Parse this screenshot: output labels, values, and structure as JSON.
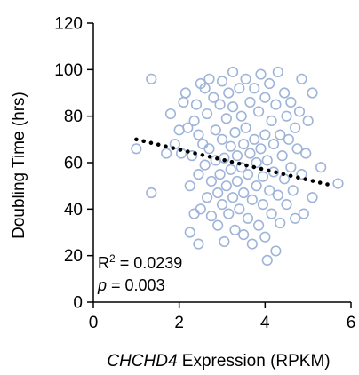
{
  "chart_data": {
    "type": "scatter",
    "title": "",
    "xlabel_gene": "CHCHD4",
    "xlabel_rest": " Expression (RPKM)",
    "ylabel": "Doubling Time (hrs)",
    "xlim": [
      0,
      6
    ],
    "ylim": [
      0,
      120
    ],
    "xticks": [
      0,
      2,
      4,
      6
    ],
    "yticks": [
      0,
      20,
      40,
      60,
      80,
      100,
      120
    ],
    "grid": false,
    "marker_color": "#9fb4d9",
    "trend_color": "#000000",
    "trendline": {
      "x": [
        1.0,
        5.6
      ],
      "y": [
        70,
        50
      ]
    },
    "stats": {
      "r2_label": "R",
      "r2_sup": "2",
      "r2_value": " = 0.0239",
      "p_label": "p",
      "p_value": " = 0.003"
    },
    "points": [
      [
        1.0,
        66
      ],
      [
        1.35,
        96
      ],
      [
        1.35,
        47
      ],
      [
        1.7,
        64
      ],
      [
        1.8,
        81
      ],
      [
        1.9,
        68
      ],
      [
        2.0,
        74
      ],
      [
        2.05,
        64
      ],
      [
        2.1,
        86
      ],
      [
        2.15,
        90
      ],
      [
        2.2,
        75
      ],
      [
        2.25,
        50
      ],
      [
        2.25,
        30
      ],
      [
        2.3,
        63
      ],
      [
        2.35,
        78
      ],
      [
        2.35,
        38
      ],
      [
        2.4,
        85
      ],
      [
        2.45,
        72
      ],
      [
        2.45,
        55
      ],
      [
        2.45,
        25
      ],
      [
        2.5,
        40
      ],
      [
        2.5,
        94
      ],
      [
        2.55,
        68
      ],
      [
        2.6,
        59
      ],
      [
        2.6,
        92
      ],
      [
        2.65,
        81
      ],
      [
        2.65,
        45
      ],
      [
        2.7,
        66
      ],
      [
        2.7,
        96
      ],
      [
        2.75,
        52
      ],
      [
        2.75,
        37
      ],
      [
        2.8,
        88
      ],
      [
        2.85,
        74
      ],
      [
        2.85,
        61
      ],
      [
        2.9,
        47
      ],
      [
        2.9,
        33
      ],
      [
        2.95,
        85
      ],
      [
        2.95,
        55
      ],
      [
        3.0,
        95
      ],
      [
        3.0,
        70
      ],
      [
        3.0,
        42
      ],
      [
        3.05,
        62
      ],
      [
        3.05,
        26
      ],
      [
        3.1,
        79
      ],
      [
        3.1,
        50
      ],
      [
        3.15,
        90
      ],
      [
        3.15,
        38
      ],
      [
        3.2,
        67
      ],
      [
        3.2,
        57
      ],
      [
        3.25,
        99
      ],
      [
        3.25,
        84
      ],
      [
        3.25,
        45
      ],
      [
        3.3,
        73
      ],
      [
        3.3,
        31
      ],
      [
        3.35,
        63
      ],
      [
        3.35,
        52
      ],
      [
        3.4,
        92
      ],
      [
        3.4,
        40
      ],
      [
        3.45,
        80
      ],
      [
        3.45,
        58
      ],
      [
        3.5,
        68
      ],
      [
        3.5,
        47
      ],
      [
        3.5,
        29
      ],
      [
        3.55,
        96
      ],
      [
        3.55,
        75
      ],
      [
        3.6,
        55
      ],
      [
        3.6,
        36
      ],
      [
        3.65,
        86
      ],
      [
        3.65,
        64
      ],
      [
        3.7,
        44
      ],
      [
        3.7,
        25
      ],
      [
        3.75,
        92
      ],
      [
        3.75,
        70
      ],
      [
        3.8,
        60
      ],
      [
        3.8,
        50
      ],
      [
        3.85,
        82
      ],
      [
        3.85,
        33
      ],
      [
        3.9,
        98
      ],
      [
        3.9,
        66
      ],
      [
        3.95,
        42
      ],
      [
        3.95,
        54
      ],
      [
        4.0,
        88
      ],
      [
        4.0,
        72
      ],
      [
        4.0,
        28
      ],
      [
        4.05,
        61
      ],
      [
        4.05,
        18
      ],
      [
        4.1,
        94
      ],
      [
        4.1,
        48
      ],
      [
        4.15,
        78
      ],
      [
        4.15,
        38
      ],
      [
        4.2,
        68
      ],
      [
        4.2,
        56
      ],
      [
        4.25,
        85
      ],
      [
        4.25,
        22
      ],
      [
        4.3,
        99
      ],
      [
        4.3,
        46
      ],
      [
        4.35,
        72
      ],
      [
        4.35,
        34
      ],
      [
        4.4,
        63
      ],
      [
        4.45,
        90
      ],
      [
        4.45,
        53
      ],
      [
        4.5,
        80
      ],
      [
        4.5,
        42
      ],
      [
        4.55,
        70
      ],
      [
        4.6,
        86
      ],
      [
        4.6,
        58
      ],
      [
        4.65,
        48
      ],
      [
        4.7,
        75
      ],
      [
        4.7,
        36
      ],
      [
        4.75,
        66
      ],
      [
        4.8,
        82
      ],
      [
        4.85,
        96
      ],
      [
        4.85,
        55
      ],
      [
        4.9,
        38
      ],
      [
        4.95,
        64
      ],
      [
        5.0,
        78
      ],
      [
        5.1,
        90
      ],
      [
        5.1,
        45
      ],
      [
        5.3,
        58
      ],
      [
        5.7,
        51
      ]
    ]
  }
}
